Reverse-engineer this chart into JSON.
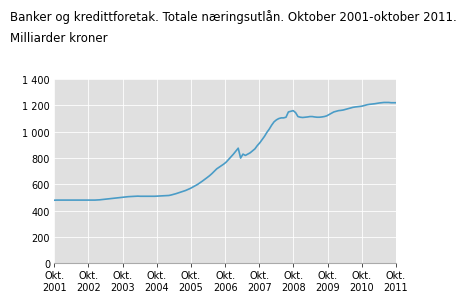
{
  "title_line1": "Banker og kredittforetak. Totale næringsutlån. Oktober 2001-oktober 2011.",
  "title_line2": "Milliarder kroner",
  "title_fontsize": 8.5,
  "line_color": "#4a9cc7",
  "background_color": "#ffffff",
  "plot_bg_color": "#e0e0e0",
  "grid_color": "#ffffff",
  "ylim": [
    0,
    1400
  ],
  "yticks": [
    0,
    200,
    400,
    600,
    800,
    1000,
    1200,
    1400
  ],
  "xtick_labels": [
    "Okt.\n2001",
    "Okt.\n2002",
    "Okt.\n2003",
    "Okt.\n2004",
    "Okt.\n2005",
    "Okt.\n2006",
    "Okt.\n2007",
    "Okt.\n2008",
    "Okt.\n2009",
    "Okt.\n2010",
    "Okt.\n2011"
  ],
  "values": [
    480,
    481,
    481,
    481,
    481,
    481,
    481,
    481,
    481,
    481,
    481,
    481,
    481,
    481,
    481,
    481,
    481,
    481,
    482,
    483,
    485,
    487,
    489,
    491,
    493,
    495,
    497,
    499,
    501,
    503,
    505,
    507,
    508,
    509,
    510,
    511,
    510,
    510,
    510,
    510,
    510,
    510,
    510,
    511,
    512,
    513,
    514,
    515,
    516,
    520,
    525,
    530,
    536,
    542,
    548,
    554,
    562,
    570,
    580,
    590,
    600,
    612,
    625,
    638,
    652,
    666,
    682,
    700,
    718,
    730,
    742,
    755,
    770,
    790,
    810,
    830,
    852,
    875,
    800,
    830,
    820,
    830,
    840,
    855,
    870,
    895,
    915,
    940,
    965,
    995,
    1020,
    1050,
    1075,
    1090,
    1100,
    1105,
    1105,
    1110,
    1150,
    1155,
    1160,
    1145,
    1115,
    1110,
    1108,
    1110,
    1112,
    1115,
    1115,
    1112,
    1110,
    1110,
    1112,
    1115,
    1120,
    1130,
    1140,
    1150,
    1155,
    1160,
    1162,
    1165,
    1170,
    1175,
    1180,
    1185,
    1188,
    1190,
    1192,
    1195,
    1200,
    1205,
    1208,
    1210,
    1212,
    1215,
    1218,
    1220,
    1222,
    1222,
    1222,
    1220,
    1220,
    1220
  ]
}
